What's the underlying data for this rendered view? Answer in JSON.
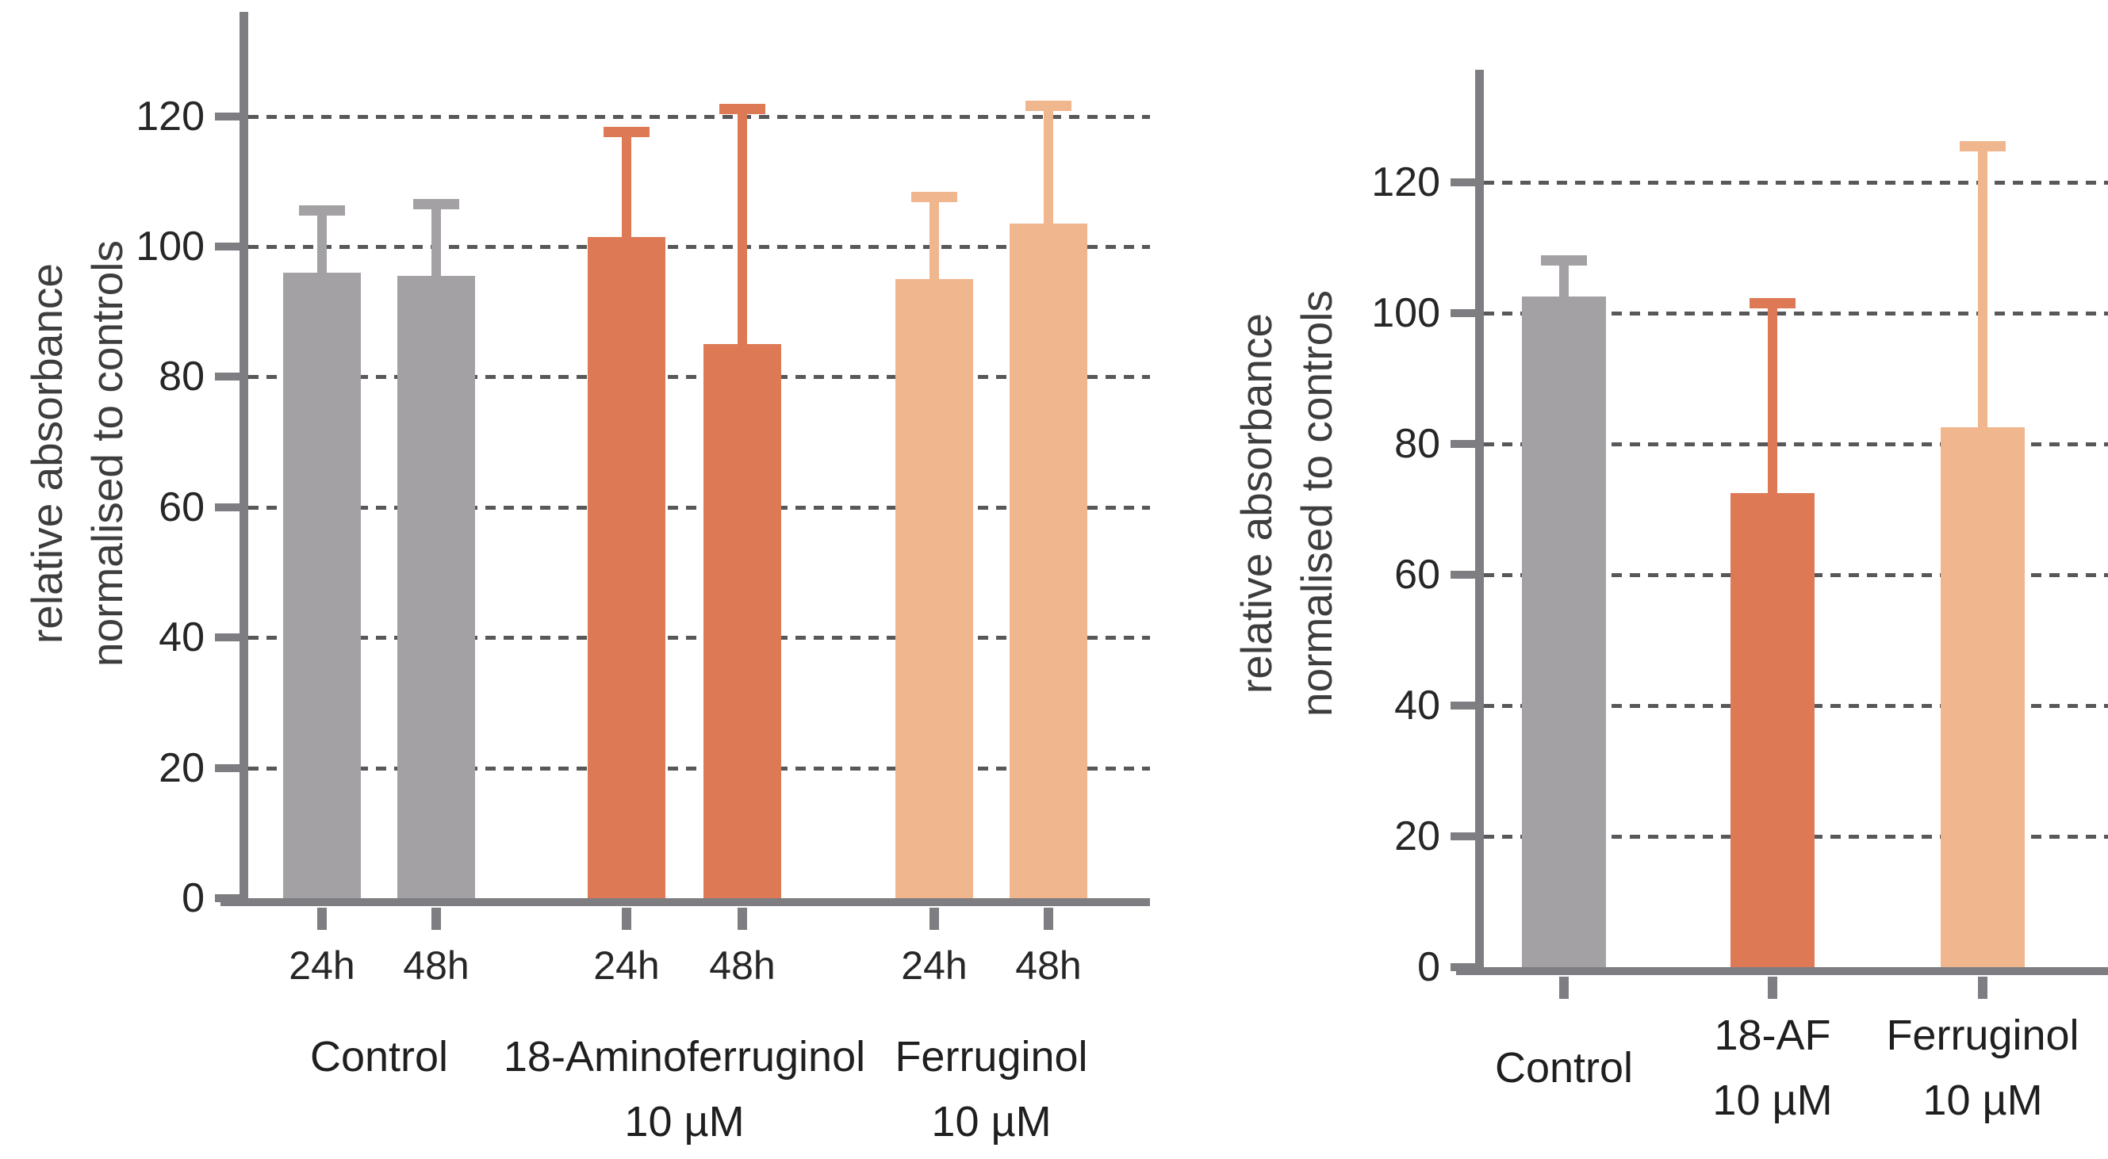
{
  "figure": {
    "background": "#ffffff",
    "colors": {
      "gray": "#a3a1a4",
      "dark_orange": "#dd7a55",
      "light_orange": "#f0b68e",
      "axis": "#7e7d81",
      "grid": "#58585a",
      "text": "#262626"
    }
  },
  "chart_data": [
    {
      "type": "bar",
      "title": "",
      "ylabel_lines": [
        "relative absorbance",
        "normalised to controls"
      ],
      "ylim": [
        0,
        135
      ],
      "yticks": [
        0,
        20,
        40,
        60,
        80,
        100,
        120
      ],
      "grid": "horizontal dashed at each ytick above 0",
      "legend": "none",
      "groups": [
        {
          "label_lines": [
            "Control"
          ],
          "bars": [
            {
              "tick": "24h",
              "value": 96,
              "error_top": 105.5,
              "color": "gray"
            },
            {
              "tick": "48h",
              "value": 95.5,
              "error_top": 106.5,
              "color": "gray"
            }
          ]
        },
        {
          "label_lines": [
            "18-Aminoferruginol",
            "10 µM"
          ],
          "bars": [
            {
              "tick": "24h",
              "value": 101.5,
              "error_top": 117.5,
              "color": "dark_orange"
            },
            {
              "tick": "48h",
              "value": 85,
              "error_top": 121,
              "color": "dark_orange"
            }
          ]
        },
        {
          "label_lines": [
            "Ferruginol",
            "10 µM"
          ],
          "bars": [
            {
              "tick": "24h",
              "value": 95,
              "error_top": 107.5,
              "color": "light_orange"
            },
            {
              "tick": "48h",
              "value": 103.5,
              "error_top": 121.5,
              "color": "light_orange"
            }
          ]
        }
      ]
    },
    {
      "type": "bar",
      "title": "",
      "ylabel_lines": [
        "relative absorbance",
        "normalised to controls"
      ],
      "ylim": [
        0,
        135
      ],
      "yticks": [
        0,
        20,
        40,
        60,
        80,
        100,
        120
      ],
      "grid": "horizontal dashed at each ytick above 0",
      "legend": "none",
      "groups": [
        {
          "label_lines": [
            "Control"
          ],
          "bars": [
            {
              "tick": "",
              "value": 102.5,
              "error_top": 108,
              "color": "gray"
            }
          ]
        },
        {
          "label_lines": [
            "18-AF",
            "10 µM"
          ],
          "bars": [
            {
              "tick": "",
              "value": 72.5,
              "error_top": 101.5,
              "color": "dark_orange"
            }
          ]
        },
        {
          "label_lines": [
            "Ferruginol",
            "10 µM"
          ],
          "bars": [
            {
              "tick": "",
              "value": 82.5,
              "error_top": 125.5,
              "color": "light_orange"
            }
          ]
        }
      ]
    }
  ]
}
